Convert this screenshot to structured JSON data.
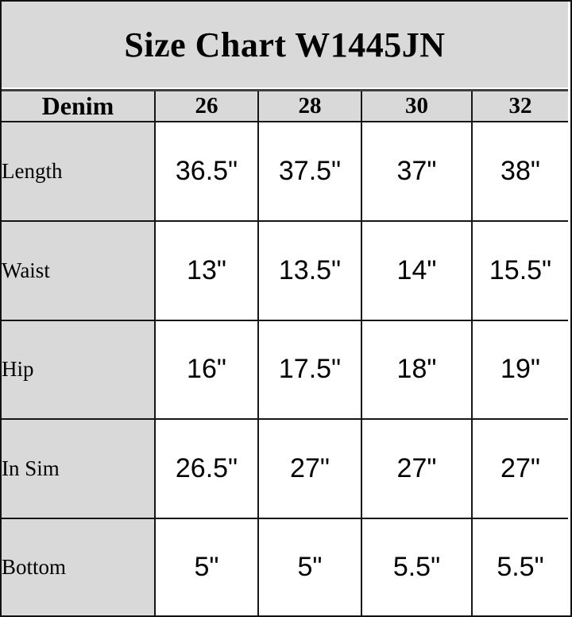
{
  "title": "Size Chart W1445JN",
  "chart_data": {
    "type": "table",
    "title": "Size Chart W1445JN",
    "corner_label": "Denim",
    "size_columns": [
      "26",
      "28",
      "30",
      "32"
    ],
    "rows": [
      {
        "label": "Length",
        "values": [
          "36.5\"",
          "37.5\"",
          "37\"",
          "38\""
        ]
      },
      {
        "label": "Waist",
        "values": [
          "13\"",
          "13.5\"",
          "14\"",
          "15.5\""
        ]
      },
      {
        "label": "Hip",
        "values": [
          "16\"",
          "17.5\"",
          "18\"",
          "19\""
        ]
      },
      {
        "label": "In Sim",
        "values": [
          "26.5\"",
          "27\"",
          "27\"",
          "27\""
        ]
      },
      {
        "label": "Bottom",
        "values": [
          "5\"",
          "5\"",
          "5.5\"",
          "5.5\""
        ]
      }
    ],
    "layout": {
      "header_fill": "#d9d9d9",
      "label_column_fill": "#d9d9d9",
      "cell_fill": "#ffffff",
      "grid_color": "#161616",
      "divider_color": "#3f3f3f",
      "text_color": "#000000"
    }
  }
}
